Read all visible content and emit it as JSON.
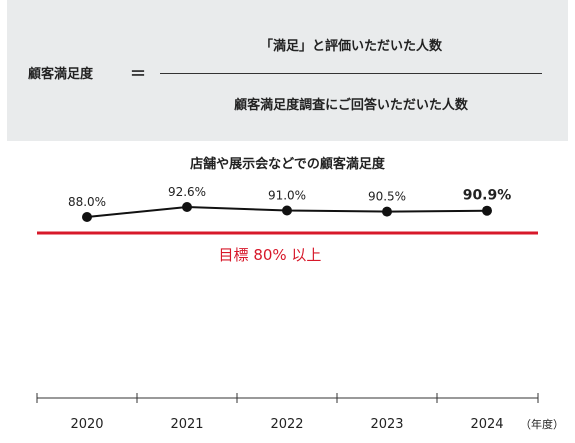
{
  "formula": {
    "lhs": "顧客満足度",
    "equals": "＝",
    "numerator": "「満足」と評価いただいた人数",
    "denominator": "顧客満足度調査にご回答いただいた人数"
  },
  "chart_data": {
    "type": "line",
    "title": "店舗や展示会などでの顧客満足度",
    "categories": [
      "2020",
      "2021",
      "2022",
      "2023",
      "2024"
    ],
    "values": [
      88.0,
      92.6,
      91.0,
      90.5,
      90.9
    ],
    "value_labels": [
      "88.0%",
      "92.6%",
      "91.0%",
      "90.5%",
      "90.9%"
    ],
    "x_unit": "（年度）",
    "target": {
      "value": 80,
      "label": "目標 80% 以上",
      "color": "#d7182a"
    },
    "line_color": "#111111",
    "grid": false,
    "legend": "none"
  }
}
